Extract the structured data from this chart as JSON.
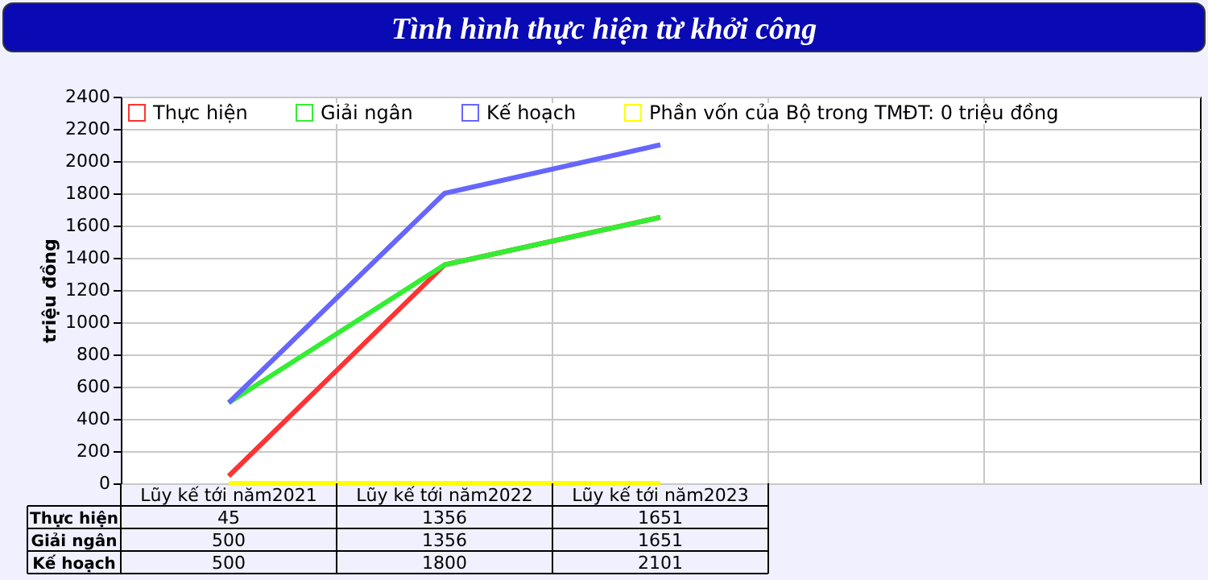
{
  "chart_data": {
    "type": "line",
    "title": "Tình hình thực hiện từ khởi công",
    "ylabel": "triệu đồng",
    "categories": [
      "Lũy kế tới năm2021",
      "Lũy kế tới năm2022",
      "Lũy kế tới năm2023",
      null,
      null
    ],
    "series": [
      {
        "name": "Thực hiện",
        "color": "#ff3333",
        "values": [
          45,
          1356,
          1651,
          null,
          null
        ],
        "value_labels": [
          "45",
          "1356",
          "1651",
          null,
          null
        ]
      },
      {
        "name": "Giải ngân",
        "color": "#33ee33",
        "values": [
          500,
          1356,
          1651,
          null,
          null
        ],
        "value_labels": [
          "500",
          "1356",
          "1651",
          null,
          null
        ]
      },
      {
        "name": "Kế hoạch",
        "color": "#6666ff",
        "values": [
          500,
          1800,
          2101,
          null,
          null
        ],
        "value_labels": [
          "500",
          "1800",
          "2101",
          null,
          null
        ]
      },
      {
        "name": "Phần vốn của Bộ trong TMĐT: 0 triệu đồng",
        "color": "#ffff00",
        "values": [
          0,
          0,
          0,
          null,
          null
        ]
      }
    ],
    "ylim": [
      0,
      2400
    ],
    "yticks": [
      0,
      200,
      400,
      600,
      800,
      1000,
      1200,
      1400,
      1600,
      1800,
      2000,
      2200,
      2400
    ],
    "grid": true,
    "legend": "top left",
    "marker": "none",
    "line_style": "solid"
  }
}
